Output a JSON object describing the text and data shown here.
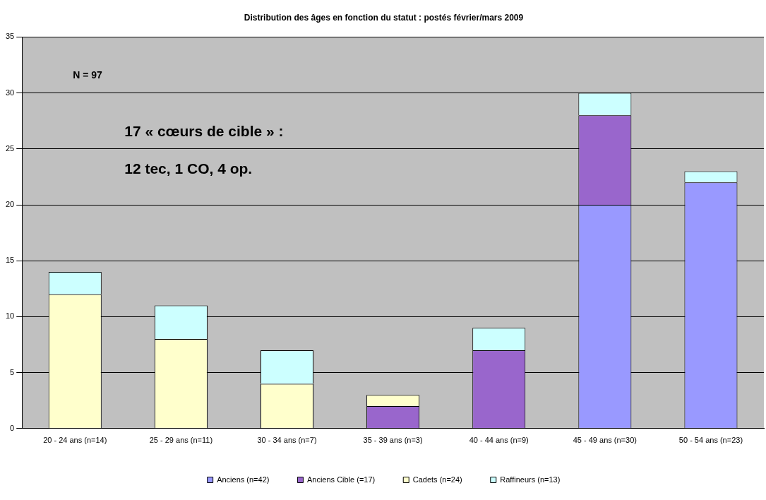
{
  "chart_data": {
    "type": "bar",
    "title": "Distribution des âges en fonction du statut : postés février/mars 2009",
    "categories": [
      "20 - 24 ans (n=14)",
      "25 - 29 ans (n=11)",
      "30 - 34 ans (n=7)",
      "35 - 39 ans (n=3)",
      "40 - 44 ans (n=9)",
      "45 - 49 ans (n=30)",
      "50 - 54 ans (n=23)"
    ],
    "series": [
      {
        "name": "Anciens (n=42)",
        "color": "#9999ff",
        "values": [
          0,
          0,
          0,
          0,
          0,
          20,
          22
        ]
      },
      {
        "name": "Anciens Cible (=17)",
        "color": "#9966cc",
        "values": [
          0,
          0,
          0,
          2,
          7,
          8,
          0
        ]
      },
      {
        "name": "Cadets (n=24)",
        "color": "#ffffcc",
        "values": [
          12,
          8,
          4,
          1,
          0,
          0,
          0
        ]
      },
      {
        "name": "Raffineurs (n=13)",
        "color": "#ccffff",
        "values": [
          2,
          3,
          3,
          0,
          2,
          2,
          1
        ]
      }
    ],
    "stacked": true,
    "ylim": [
      0,
      35
    ],
    "yticks": [
      0,
      5,
      10,
      15,
      20,
      25,
      30,
      35
    ],
    "grid": "y",
    "legend": "bottom",
    "annotations": [
      "N = 97",
      "17 « cœurs de cible » :",
      "12 tec, 1 CO, 4 op."
    ]
  }
}
